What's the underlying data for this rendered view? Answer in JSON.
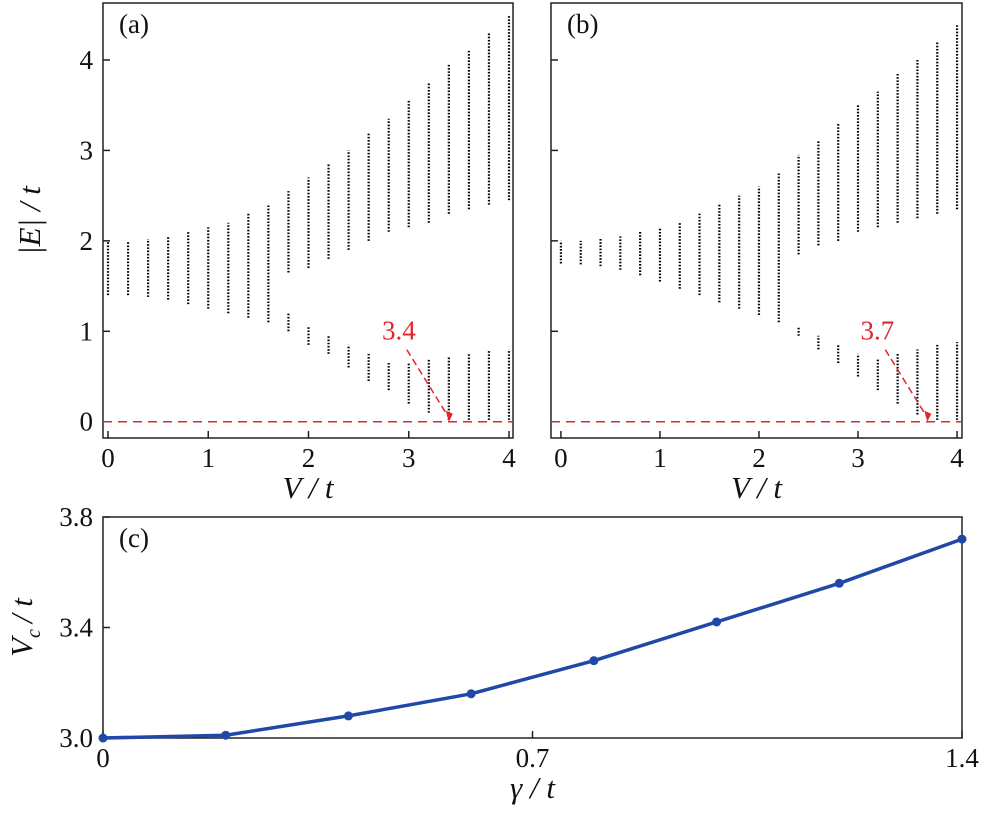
{
  "chart_data": [
    {
      "type": "range",
      "panel_label": "(a)",
      "xlabel": "V / t",
      "ylabel": "|E| / t",
      "x": [
        0,
        0.2,
        0.4,
        0.6,
        0.8,
        1.0,
        1.2,
        1.4,
        1.6,
        1.8,
        2.0,
        2.2,
        2.4,
        2.6,
        2.8,
        3.0,
        3.2,
        3.4,
        3.6,
        3.8,
        4.0
      ],
      "series": [
        {
          "color": "#000000",
          "low": [
            1.4,
            1.4,
            1.38,
            1.35,
            1.3,
            1.25,
            1.2,
            1.15,
            1.1,
            1.65,
            1.7,
            1.8,
            1.9,
            2.0,
            2.1,
            2.15,
            2.2,
            2.3,
            2.35,
            2.4,
            2.45
          ],
          "high": [
            2,
            2,
            2.02,
            2.05,
            2.1,
            2.15,
            2.2,
            2.3,
            2.4,
            2.55,
            2.7,
            2.85,
            3.0,
            3.2,
            3.35,
            3.55,
            3.75,
            3.95,
            4.1,
            4.3,
            4.5
          ]
        },
        {
          "color": "#000000",
          "low": [
            null,
            null,
            null,
            null,
            null,
            null,
            null,
            null,
            null,
            1.0,
            0.85,
            0.75,
            0.6,
            0.45,
            0.35,
            0.2,
            0.1,
            0.02,
            0.02,
            0.02,
            0.02
          ],
          "high": [
            null,
            null,
            null,
            null,
            null,
            null,
            null,
            null,
            null,
            1.2,
            1.05,
            0.95,
            0.85,
            0.75,
            0.65,
            0.65,
            0.7,
            0.72,
            0.75,
            0.78,
            0.8
          ]
        }
      ],
      "hline": 0,
      "hline_color": "#e0262b",
      "annotation": {
        "text": "3.4",
        "x": 3.4,
        "color": "#e0262b"
      },
      "xlim": [
        -0.05,
        4.04
      ],
      "ylim": [
        -0.18,
        4.63
      ],
      "xticks": [
        0,
        1,
        2,
        3,
        4
      ],
      "yticks": [
        0,
        1,
        2,
        3,
        4
      ],
      "show_ytick_labels": true
    },
    {
      "type": "range",
      "panel_label": "(b)",
      "xlabel": "V / t",
      "x": [
        0,
        0.2,
        0.4,
        0.6,
        0.8,
        1.0,
        1.2,
        1.4,
        1.6,
        1.8,
        2.0,
        2.2,
        2.4,
        2.6,
        2.8,
        3.0,
        3.2,
        3.4,
        3.6,
        3.8,
        4.0
      ],
      "series": [
        {
          "color": "#000000",
          "low": [
            1.75,
            1.74,
            1.72,
            1.68,
            1.62,
            1.55,
            1.47,
            1.4,
            1.32,
            1.25,
            1.18,
            1.1,
            1.85,
            1.95,
            2.0,
            2.1,
            2.15,
            2.2,
            2.25,
            2.3,
            2.35
          ],
          "high": [
            2,
            2,
            2.02,
            2.05,
            2.1,
            2.15,
            2.2,
            2.3,
            2.4,
            2.5,
            2.6,
            2.75,
            2.95,
            3.1,
            3.3,
            3.5,
            3.65,
            3.85,
            4.0,
            4.2,
            4.4
          ]
        },
        {
          "color": "#000000",
          "low": [
            null,
            null,
            null,
            null,
            null,
            null,
            null,
            null,
            null,
            null,
            null,
            null,
            0.95,
            0.8,
            0.65,
            0.5,
            0.35,
            0.2,
            0.08,
            0.02,
            0.02
          ],
          "high": [
            null,
            null,
            null,
            null,
            null,
            null,
            null,
            null,
            null,
            null,
            null,
            null,
            1.05,
            0.95,
            0.85,
            0.75,
            0.7,
            0.75,
            0.8,
            0.85,
            0.88
          ]
        }
      ],
      "hline": 0,
      "hline_color": "#e0262b",
      "annotation": {
        "text": "3.7",
        "x": 3.7,
        "color": "#e0262b"
      },
      "xlim": [
        -0.1,
        4.05
      ],
      "ylim": [
        -0.18,
        4.63
      ],
      "xticks": [
        0,
        1,
        2,
        3,
        4
      ],
      "yticks": [
        0,
        1,
        2,
        3,
        4
      ],
      "show_ytick_labels": false
    },
    {
      "type": "line",
      "panel_label": "(c)",
      "xlabel": "γ / t",
      "ylabel": {
        "main": "V",
        "sub": "c",
        "rest": "/ t"
      },
      "x": [
        0,
        0.2,
        0.4,
        0.6,
        0.8,
        1.0,
        1.2,
        1.4
      ],
      "y": [
        3.0,
        3.01,
        3.08,
        3.16,
        3.28,
        3.42,
        3.56,
        3.72
      ],
      "color": "#2048a8",
      "xlim": [
        0,
        1.4
      ],
      "ylim": [
        3.0,
        3.8
      ],
      "xticks": [
        0,
        0.7,
        1.4
      ],
      "yticks": [
        {
          "value": 3.0,
          "label": "3.0"
        },
        {
          "value": 3.4,
          "label": "3.4"
        },
        {
          "value": 3.8,
          "label": "3.8"
        }
      ]
    }
  ]
}
